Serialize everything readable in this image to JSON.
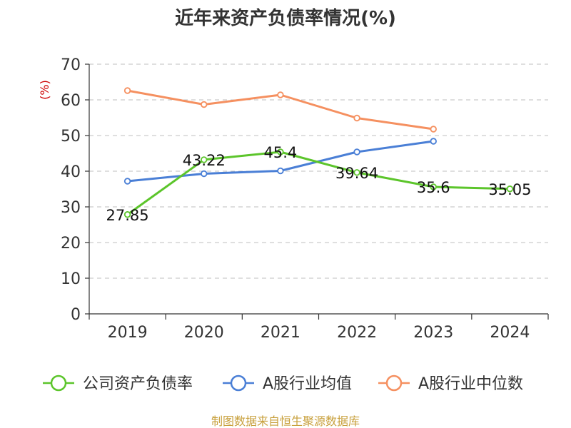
{
  "title": "近年来资产负债率情况(%)",
  "source_note": "制图数据来自恒生聚源数据库",
  "colors": {
    "series_company": "#5cc52b",
    "series_industry_avg": "#4a7fd6",
    "series_industry_median": "#f59060",
    "y_unit": "#cc0000",
    "source": "#c8a03c",
    "axis": "#333333",
    "grid": "#bfbfbf"
  },
  "chart_data": {
    "type": "line",
    "title": "近年来资产负债率情况(%)",
    "xlabel": "",
    "ylabel": "(%)",
    "categories": [
      "2019",
      "2020",
      "2021",
      "2022",
      "2023",
      "2024"
    ],
    "ylim": [
      0,
      70
    ],
    "yticks": [
      0,
      10,
      20,
      30,
      40,
      50,
      60,
      70
    ],
    "grid": true,
    "legend_position": "bottom",
    "series": [
      {
        "name": "公司资产负债率",
        "values": [
          27.85,
          43.22,
          45.4,
          39.64,
          35.6,
          35.05
        ],
        "labels": [
          "27.85",
          "43.22",
          "45.4",
          "39.64",
          "35.6",
          "35.05"
        ],
        "color_key": "series_company"
      },
      {
        "name": "A股行业均值",
        "values": [
          37.2,
          39.3,
          40.1,
          45.4,
          48.4,
          null
        ],
        "color_key": "series_industry_avg"
      },
      {
        "name": "A股行业中位数",
        "values": [
          62.6,
          58.7,
          61.4,
          54.9,
          51.8,
          null
        ],
        "color_key": "series_industry_median"
      }
    ]
  }
}
